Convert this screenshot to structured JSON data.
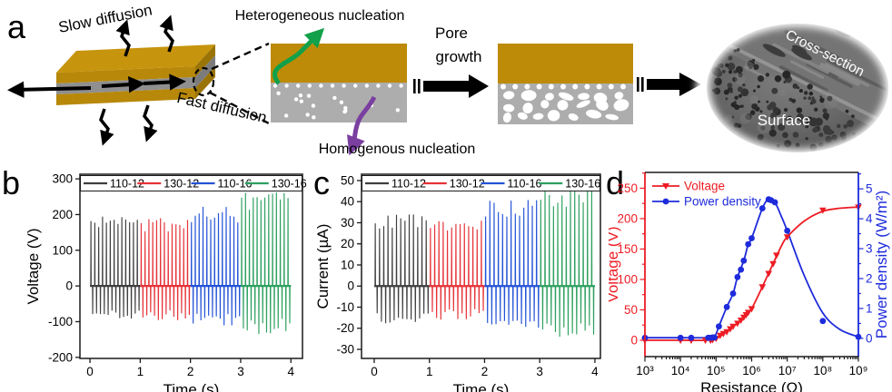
{
  "figure": {
    "panels": {
      "a": "a",
      "b": "b",
      "c": "c",
      "d": "d"
    }
  },
  "panel_a": {
    "slow_diffusion": "Slow diffusion",
    "fast_diffusion": "Fast diffusion",
    "heterogeneous": "Heterogeneous  nucleation",
    "homogenous": "Homogenous  nucleation",
    "pore_growth_line1": "Pore",
    "pore_growth_line2": "growth",
    "sem": {
      "cross_section": "Cross-section",
      "surface": "Surface"
    },
    "colors": {
      "gold_top": "#c7940d",
      "gold_front": "#b8880a",
      "gold_side": "#9b7407",
      "gray_front": "#8f8f8f",
      "gray_side": "#7c7c7c",
      "rect_gold": "#bd8b07",
      "rect_gray": "#adadad",
      "green_arrow": "#12a04a",
      "purple_arrow": "#7b3fa0"
    }
  },
  "chart_data": [
    {
      "panel": "b",
      "type": "line",
      "subtype": "spike-train",
      "xlabel": "Time (s)",
      "ylabel": "Voltage (V)",
      "xlim": [
        -0.2,
        4.23
      ],
      "ylim": [
        -203,
        313
      ],
      "xticks": [
        0,
        1,
        2,
        3,
        4
      ],
      "yticks": [
        -200,
        -100,
        0,
        100,
        200,
        300
      ],
      "grid": false,
      "legend_position": "top-row-boxed",
      "legend": [
        "110-12",
        "130-12",
        "110-16",
        "130-16"
      ],
      "series": [
        {
          "name": "110-12",
          "color": "#3f3f3f",
          "t_start": 0,
          "t_end": 1,
          "peak": 195,
          "trough": -95,
          "cycles": 13
        },
        {
          "name": "130-12",
          "color": "#e63238",
          "t_start": 1,
          "t_end": 2,
          "peak": 190,
          "trough": -97,
          "cycles": 13
        },
        {
          "name": "110-16",
          "color": "#2453d6",
          "t_start": 2,
          "t_end": 3,
          "peak": 222,
          "trough": -112,
          "cycles": 13
        },
        {
          "name": "130-16",
          "color": "#2da05f",
          "t_start": 3,
          "t_end": 4,
          "peak": 262,
          "trough": -135,
          "cycles": 13
        }
      ]
    },
    {
      "panel": "c",
      "type": "line",
      "subtype": "spike-train",
      "xlabel": "Time (s)",
      "ylabel": "Current (µA)",
      "xlim": [
        -0.23,
        4.1
      ],
      "ylim": [
        -34.3,
        53
      ],
      "xticks": [
        0,
        1,
        2,
        3,
        4
      ],
      "yticks": [
        -30,
        -20,
        -10,
        0,
        10,
        20,
        30,
        40,
        50
      ],
      "grid": false,
      "legend_position": "top-row-boxed",
      "legend": [
        "110-12",
        "130-12",
        "110-16",
        "130-16"
      ],
      "series": [
        {
          "name": "110-12",
          "color": "#3f3f3f",
          "t_start": 0,
          "t_end": 1,
          "peak": 34,
          "trough": -18,
          "cycles": 13
        },
        {
          "name": "130-12",
          "color": "#e63238",
          "t_start": 1,
          "t_end": 2,
          "peak": 31,
          "trough": -16,
          "cycles": 13
        },
        {
          "name": "110-16",
          "color": "#2453d6",
          "t_start": 2,
          "t_end": 3,
          "peak": 41,
          "trough": -21,
          "cycles": 13
        },
        {
          "name": "130-16",
          "color": "#2da05f",
          "t_start": 3,
          "t_end": 4,
          "peak": 47,
          "trough": -25,
          "cycles": 13
        }
      ]
    },
    {
      "panel": "d",
      "type": "line+scatter",
      "xscale": "log",
      "xlabel": "Resistance (Ω)",
      "xlim_log": [
        3,
        9
      ],
      "xticks_log": [
        3,
        4,
        5,
        6,
        7,
        8,
        9
      ],
      "xtick_labels": [
        "10³",
        "10⁴",
        "10⁵",
        "10⁶",
        "10⁷",
        "10⁸",
        "10⁹"
      ],
      "left_axis": {
        "label": "Voltage (V)",
        "color": "#ed1c24",
        "lim": [
          -26.9,
          276
        ],
        "ticks": [
          0,
          50,
          100,
          150,
          200,
          250
        ],
        "minor_step": 25
      },
      "right_axis": {
        "label": "Power density (W/m²)",
        "color": "#1e2bdb",
        "lim": [
          -0.61,
          5.55
        ],
        "ticks": [
          0,
          1,
          2,
          3,
          4,
          5
        ],
        "minor_step": 0.5
      },
      "grid": false,
      "legend_position": "top-left-list",
      "legend": [
        {
          "label": "Voltage",
          "color": "#ed1c24",
          "marker": "triangle-down"
        },
        {
          "label": "Power density",
          "color": "#1e2bdb",
          "marker": "circle"
        }
      ],
      "series": [
        {
          "name": "Voltage",
          "axis": "left",
          "color": "#ed1c24",
          "marker": "triangle-down",
          "points": [
            [
              1000,
              0
            ],
            [
              10000,
              0
            ],
            [
              20000,
              0
            ],
            [
              50000,
              0
            ],
            [
              70000,
              0
            ],
            [
              80000,
              1
            ],
            [
              100000,
              3
            ],
            [
              130000,
              8
            ],
            [
              160000,
              11
            ],
            [
              200000,
              14
            ],
            [
              250000,
              19
            ],
            [
              300000,
              23
            ],
            [
              400000,
              28
            ],
            [
              500000,
              33
            ],
            [
              600000,
              38
            ],
            [
              700000,
              42
            ],
            [
              800000,
              46
            ],
            [
              1000000,
              52
            ],
            [
              2000000,
              88
            ],
            [
              3000000,
              110
            ],
            [
              4000000,
              126
            ],
            [
              5000000,
              140
            ],
            [
              10000000,
              170
            ],
            [
              100000000,
              214
            ],
            [
              1000000000,
              219
            ]
          ],
          "curve": [
            [
              1000,
              0
            ],
            [
              10000,
              0
            ],
            [
              50000,
              0
            ],
            [
              100000,
              3
            ],
            [
              200000,
              14
            ],
            [
              400000,
              28
            ],
            [
              700000,
              42
            ],
            [
              1000000,
              52
            ],
            [
              2000000,
              88
            ],
            [
              4000000,
              126
            ],
            [
              7000000,
              156
            ],
            [
              10000000,
              170
            ],
            [
              30000000,
              196
            ],
            [
              100000000,
              212
            ],
            [
              300000000,
              217
            ],
            [
              1000000000,
              219
            ]
          ]
        },
        {
          "name": "Power density",
          "axis": "right",
          "color": "#1e2bdb",
          "marker": "circle",
          "points": [
            [
              1000,
              0.02
            ],
            [
              10000,
              0.02
            ],
            [
              20000,
              0.02
            ],
            [
              60000,
              0.02
            ],
            [
              70000,
              0.02
            ],
            [
              80000,
              0.03
            ],
            [
              90000,
              0.03
            ],
            [
              120000,
              0.4
            ],
            [
              200000,
              1.05
            ],
            [
              300000,
              1.5
            ],
            [
              400000,
              2.05
            ],
            [
              500000,
              2.3
            ],
            [
              600000,
              2.6
            ],
            [
              800000,
              3.15
            ],
            [
              1000000,
              3.35
            ],
            [
              2000000,
              4.35
            ],
            [
              3000000,
              4.65
            ],
            [
              3500000,
              4.62
            ],
            [
              4500000,
              4.55
            ],
            [
              10000000,
              3.6
            ],
            [
              100000000,
              0.58
            ],
            [
              1000000000,
              0.05
            ]
          ],
          "curve": [
            [
              1000,
              0.02
            ],
            [
              10000,
              0.02
            ],
            [
              60000,
              0.02
            ],
            [
              90000,
              0.05
            ],
            [
              120000,
              0.4
            ],
            [
              200000,
              1.05
            ],
            [
              300000,
              1.5
            ],
            [
              400000,
              2.05
            ],
            [
              600000,
              2.6
            ],
            [
              800000,
              3.15
            ],
            [
              1000000,
              3.35
            ],
            [
              2000000,
              4.35
            ],
            [
              3000000,
              4.68
            ],
            [
              4000000,
              4.6
            ],
            [
              5000000,
              4.45
            ],
            [
              7000000,
              4.05
            ],
            [
              10000000,
              3.6
            ],
            [
              30000000,
              2.1
            ],
            [
              100000000,
              0.85
            ],
            [
              300000000,
              0.3
            ],
            [
              1000000000,
              0.05
            ]
          ]
        }
      ]
    }
  ]
}
